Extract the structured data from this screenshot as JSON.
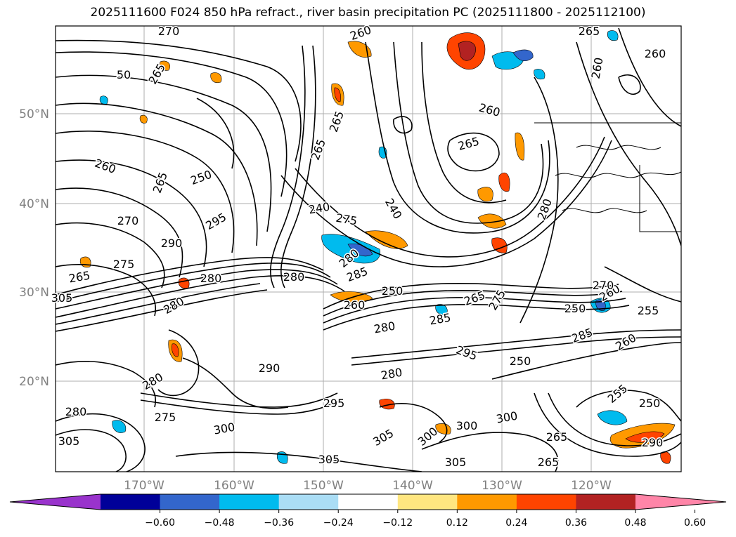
{
  "title": "2025111600 F024 850 hPa refract., river basin precipitation PC (2025111800 - 2025112100)",
  "lat_labels": [
    "50°N",
    "40°N",
    "30°N",
    "20°N"
  ],
  "lon_labels": [
    "170°W",
    "160°W",
    "150°W",
    "140°W",
    "130°W",
    "120°W"
  ],
  "label_color": "#808080",
  "colorbar": {
    "colors": [
      "#9933cc",
      "#000099",
      "#3366cc",
      "#00bbee",
      "#aaddf5",
      "#ffffff",
      "#ffe680",
      "#ff9900",
      "#ff4400",
      "#b22222",
      "#ff85a8"
    ],
    "ticks": [
      "−0.60",
      "−0.48",
      "−0.36",
      "−0.24",
      "−0.12",
      "0.12",
      "0.24",
      "0.36",
      "0.48",
      "0.60"
    ]
  },
  "contour_labels": [
    "270",
    "260",
    "265",
    "260",
    "265",
    "50",
    "260",
    "265",
    "260",
    "265",
    "260",
    "250",
    "240",
    "240",
    "265",
    "275",
    "265",
    "270",
    "280",
    "295",
    "290",
    "275",
    "265",
    "280",
    "285",
    "280",
    "250",
    "260",
    "265",
    "275",
    "285",
    "295",
    "280",
    "280",
    "280",
    "290",
    "280",
    "305",
    "275",
    "280",
    "260",
    "250",
    "255",
    "285",
    "260",
    "250",
    "255",
    "250",
    "265",
    "270",
    "305",
    "300",
    "300",
    "300",
    "300",
    "280",
    "295",
    "305",
    "305",
    "305",
    "290",
    "265"
  ]
}
